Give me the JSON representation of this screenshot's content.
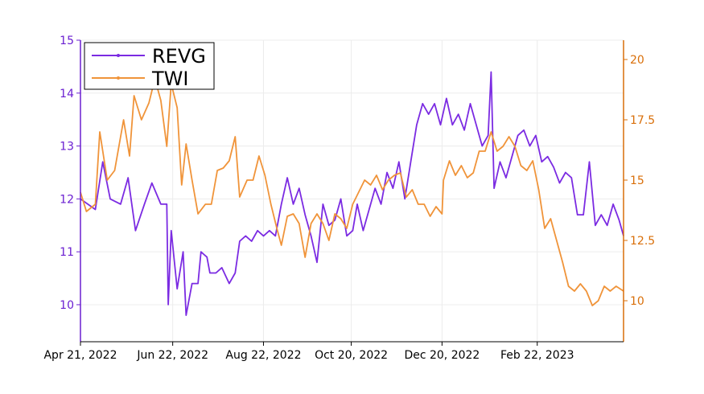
{
  "chart_data": {
    "type": "line",
    "title": "",
    "xlabel": "",
    "ylabel_left": "",
    "ylabel_right": "",
    "x_tick_labels": [
      "Apr 21, 2022",
      "Jun 22, 2022",
      "Aug 22, 2022",
      "Oct 20, 2022",
      "Dec 20, 2022",
      "Feb 22, 2023"
    ],
    "x_tick_dates": [
      "2022-04-21",
      "2022-06-22",
      "2022-08-22",
      "2022-10-20",
      "2022-12-20",
      "2023-02-22"
    ],
    "x_range": [
      "2022-04-21",
      "2023-04-21"
    ],
    "y_left": {
      "range": [
        9.3,
        15
      ],
      "ticks": [
        10,
        11,
        12,
        13,
        14,
        15
      ],
      "color": "#6a1fd1"
    },
    "y_right": {
      "range": [
        8.3,
        20.8
      ],
      "ticks": [
        10,
        12.5,
        15,
        17.5,
        20
      ],
      "tick_labels": [
        "10",
        "12.5",
        "15",
        "17.5",
        "20"
      ],
      "color": "#d96f0a"
    },
    "grid": true,
    "legend_position": "top-left",
    "series": [
      {
        "name": "REVG",
        "axis": "left",
        "color": "#7b2be2",
        "points": [
          [
            "2022-04-21",
            12.0
          ],
          [
            "2022-05-01",
            11.8
          ],
          [
            "2022-05-06",
            12.7
          ],
          [
            "2022-05-11",
            12.0
          ],
          [
            "2022-05-18",
            11.9
          ],
          [
            "2022-05-23",
            12.4
          ],
          [
            "2022-05-28",
            11.4
          ],
          [
            "2022-06-03",
            11.9
          ],
          [
            "2022-06-08",
            12.3
          ],
          [
            "2022-06-14",
            11.9
          ],
          [
            "2022-06-18",
            11.9
          ],
          [
            "2022-06-19",
            10.0
          ],
          [
            "2022-06-21",
            11.4
          ],
          [
            "2022-06-25",
            10.3
          ],
          [
            "2022-06-29",
            11.0
          ],
          [
            "2022-07-01",
            9.8
          ],
          [
            "2022-07-05",
            10.4
          ],
          [
            "2022-07-09",
            10.4
          ],
          [
            "2022-07-11",
            11.0
          ],
          [
            "2022-07-15",
            10.9
          ],
          [
            "2022-07-17",
            10.6
          ],
          [
            "2022-07-21",
            10.6
          ],
          [
            "2022-07-25",
            10.7
          ],
          [
            "2022-07-30",
            10.4
          ],
          [
            "2022-08-03",
            10.6
          ],
          [
            "2022-08-06",
            11.2
          ],
          [
            "2022-08-10",
            11.3
          ],
          [
            "2022-08-14",
            11.2
          ],
          [
            "2022-08-18",
            11.4
          ],
          [
            "2022-08-22",
            11.3
          ],
          [
            "2022-08-26",
            11.4
          ],
          [
            "2022-08-30",
            11.3
          ],
          [
            "2022-09-03",
            11.9
          ],
          [
            "2022-09-07",
            12.4
          ],
          [
            "2022-09-11",
            11.9
          ],
          [
            "2022-09-15",
            12.2
          ],
          [
            "2022-09-19",
            11.7
          ],
          [
            "2022-09-23",
            11.3
          ],
          [
            "2022-09-27",
            10.8
          ],
          [
            "2022-10-01",
            11.9
          ],
          [
            "2022-10-05",
            11.5
          ],
          [
            "2022-10-09",
            11.6
          ],
          [
            "2022-10-13",
            12.0
          ],
          [
            "2022-10-17",
            11.3
          ],
          [
            "2022-10-21",
            11.4
          ],
          [
            "2022-10-24",
            11.9
          ],
          [
            "2022-10-28",
            11.4
          ],
          [
            "2022-11-01",
            11.8
          ],
          [
            "2022-11-05",
            12.2
          ],
          [
            "2022-11-09",
            11.9
          ],
          [
            "2022-11-13",
            12.5
          ],
          [
            "2022-11-17",
            12.2
          ],
          [
            "2022-11-21",
            12.7
          ],
          [
            "2022-11-25",
            12.0
          ],
          [
            "2022-11-29",
            12.7
          ],
          [
            "2022-12-03",
            13.4
          ],
          [
            "2022-12-07",
            13.8
          ],
          [
            "2022-12-11",
            13.6
          ],
          [
            "2022-12-15",
            13.8
          ],
          [
            "2022-12-19",
            13.4
          ],
          [
            "2022-12-23",
            13.9
          ],
          [
            "2022-12-27",
            13.4
          ],
          [
            "2022-12-31",
            13.6
          ],
          [
            "2023-01-04",
            13.3
          ],
          [
            "2023-01-08",
            13.8
          ],
          [
            "2023-01-12",
            13.4
          ],
          [
            "2023-01-16",
            13.0
          ],
          [
            "2023-01-20",
            13.2
          ],
          [
            "2023-01-22",
            14.4
          ],
          [
            "2023-01-24",
            12.2
          ],
          [
            "2023-01-28",
            12.7
          ],
          [
            "2023-02-01",
            12.4
          ],
          [
            "2023-02-05",
            12.8
          ],
          [
            "2023-02-09",
            13.2
          ],
          [
            "2023-02-13",
            13.3
          ],
          [
            "2023-02-17",
            13.0
          ],
          [
            "2023-02-21",
            13.2
          ],
          [
            "2023-02-25",
            12.7
          ],
          [
            "2023-03-01",
            12.8
          ],
          [
            "2023-03-05",
            12.6
          ],
          [
            "2023-03-09",
            12.3
          ],
          [
            "2023-03-13",
            12.5
          ],
          [
            "2023-03-17",
            12.4
          ],
          [
            "2023-03-21",
            11.7
          ],
          [
            "2023-03-25",
            11.7
          ],
          [
            "2023-03-29",
            12.7
          ],
          [
            "2023-04-02",
            11.5
          ],
          [
            "2023-04-06",
            11.7
          ],
          [
            "2023-04-10",
            11.5
          ],
          [
            "2023-04-14",
            11.9
          ],
          [
            "2023-04-18",
            11.6
          ],
          [
            "2023-04-21",
            11.3
          ]
        ]
      },
      {
        "name": "TWI",
        "axis": "right",
        "color": "#f0943a",
        "points": [
          [
            "2022-04-21",
            14.5
          ],
          [
            "2022-04-25",
            13.7
          ],
          [
            "2022-05-01",
            14.0
          ],
          [
            "2022-05-04",
            17.0
          ],
          [
            "2022-05-09",
            15.0
          ],
          [
            "2022-05-14",
            15.4
          ],
          [
            "2022-05-20",
            17.5
          ],
          [
            "2022-05-24",
            16.0
          ],
          [
            "2022-05-27",
            18.5
          ],
          [
            "2022-06-01",
            17.5
          ],
          [
            "2022-06-06",
            18.2
          ],
          [
            "2022-06-10",
            19.2
          ],
          [
            "2022-06-14",
            18.3
          ],
          [
            "2022-06-18",
            16.4
          ],
          [
            "2022-06-21",
            19.0
          ],
          [
            "2022-06-25",
            18.0
          ],
          [
            "2022-06-28",
            14.8
          ],
          [
            "2022-07-01",
            16.5
          ],
          [
            "2022-07-05",
            15.0
          ],
          [
            "2022-07-09",
            13.6
          ],
          [
            "2022-07-14",
            14.0
          ],
          [
            "2022-07-18",
            14.0
          ],
          [
            "2022-07-22",
            15.4
          ],
          [
            "2022-07-26",
            15.5
          ],
          [
            "2022-07-30",
            15.8
          ],
          [
            "2022-08-03",
            16.8
          ],
          [
            "2022-08-06",
            14.3
          ],
          [
            "2022-08-11",
            15.0
          ],
          [
            "2022-08-15",
            15.0
          ],
          [
            "2022-08-19",
            16.0
          ],
          [
            "2022-08-23",
            15.2
          ],
          [
            "2022-08-27",
            14.0
          ],
          [
            "2022-08-31",
            13.0
          ],
          [
            "2022-09-03",
            12.3
          ],
          [
            "2022-09-07",
            13.5
          ],
          [
            "2022-09-11",
            13.6
          ],
          [
            "2022-09-15",
            13.2
          ],
          [
            "2022-09-19",
            11.8
          ],
          [
            "2022-09-23",
            13.2
          ],
          [
            "2022-09-27",
            13.6
          ],
          [
            "2022-10-01",
            13.2
          ],
          [
            "2022-10-05",
            12.5
          ],
          [
            "2022-10-09",
            13.6
          ],
          [
            "2022-10-13",
            13.4
          ],
          [
            "2022-10-17",
            13.0
          ],
          [
            "2022-10-21",
            14.0
          ],
          [
            "2022-10-25",
            14.5
          ],
          [
            "2022-10-29",
            15.0
          ],
          [
            "2022-11-02",
            14.8
          ],
          [
            "2022-11-06",
            15.2
          ],
          [
            "2022-11-10",
            14.6
          ],
          [
            "2022-11-14",
            15.0
          ],
          [
            "2022-11-18",
            15.2
          ],
          [
            "2022-11-22",
            15.3
          ],
          [
            "2022-11-26",
            14.3
          ],
          [
            "2022-11-30",
            14.6
          ],
          [
            "2022-12-04",
            14.0
          ],
          [
            "2022-12-08",
            14.0
          ],
          [
            "2022-12-12",
            13.5
          ],
          [
            "2022-12-16",
            13.9
          ],
          [
            "2022-12-20",
            13.6
          ],
          [
            "2022-12-21",
            15.0
          ],
          [
            "2022-12-25",
            15.8
          ],
          [
            "2022-12-29",
            15.2
          ],
          [
            "2023-01-02",
            15.6
          ],
          [
            "2023-01-06",
            15.1
          ],
          [
            "2023-01-10",
            15.3
          ],
          [
            "2023-01-14",
            16.2
          ],
          [
            "2023-01-18",
            16.2
          ],
          [
            "2023-01-22",
            17.0
          ],
          [
            "2023-01-26",
            16.2
          ],
          [
            "2023-01-30",
            16.4
          ],
          [
            "2023-02-03",
            16.8
          ],
          [
            "2023-02-07",
            16.4
          ],
          [
            "2023-02-11",
            15.6
          ],
          [
            "2023-02-15",
            15.4
          ],
          [
            "2023-02-19",
            15.8
          ],
          [
            "2023-02-23",
            14.6
          ],
          [
            "2023-02-27",
            13.0
          ],
          [
            "2023-03-03",
            13.4
          ],
          [
            "2023-03-07",
            12.5
          ],
          [
            "2023-03-11",
            11.6
          ],
          [
            "2023-03-15",
            10.6
          ],
          [
            "2023-03-19",
            10.4
          ],
          [
            "2023-03-23",
            10.7
          ],
          [
            "2023-03-27",
            10.4
          ],
          [
            "2023-03-31",
            9.8
          ],
          [
            "2023-04-04",
            10.0
          ],
          [
            "2023-04-08",
            10.6
          ],
          [
            "2023-04-12",
            10.4
          ],
          [
            "2023-04-16",
            10.6
          ],
          [
            "2023-04-21",
            10.4
          ]
        ]
      }
    ]
  }
}
